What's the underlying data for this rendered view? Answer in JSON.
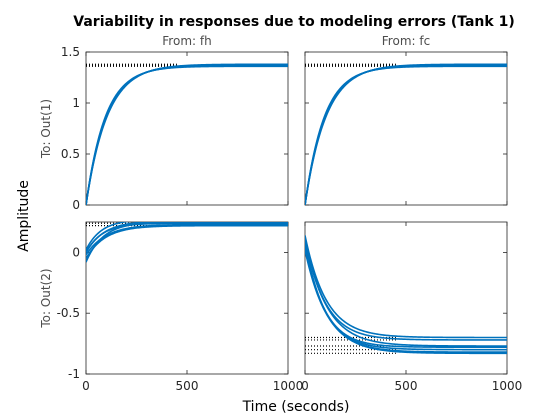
{
  "figure": {
    "title": "Variability in responses due to modeling errors (Tank 1)",
    "xlabel": "Time (seconds)",
    "ylabel": "Amplitude",
    "line_color": "#0072BD",
    "steady_state_marker_color": "#000000"
  },
  "chart_data": {
    "type": "line",
    "title": "Variability in responses due to modeling errors (Tank 1)",
    "xlabel": "Time (seconds)",
    "ylabel": "Amplitude",
    "grid": false,
    "inputs": [
      "From: fh",
      "From: fc"
    ],
    "outputs": [
      "To: Out(1)",
      "To: Out(2)"
    ],
    "rows": [
      {
        "ylim": [
          0,
          1.5
        ],
        "yticks": [
          0,
          0.5,
          1,
          1.5
        ],
        "ytick_labels": [
          "0",
          "0.5",
          "1",
          "1.5"
        ],
        "cells": [
          {
            "input": "From: fh",
            "output": "To: Out(1)",
            "series": [
              {
                "initial": 0,
                "final": 1.36,
                "tau": 95
              },
              {
                "initial": 0,
                "final": 1.37,
                "tau": 100
              },
              {
                "initial": 0,
                "final": 1.38,
                "tau": 105
              },
              {
                "initial": 0,
                "final": 1.365,
                "tau": 98
              },
              {
                "initial": 0,
                "final": 1.375,
                "tau": 102
              }
            ],
            "steady_state_levels": [
              1.36,
              1.37,
              1.38
            ]
          },
          {
            "input": "From: fc",
            "output": "To: Out(1)",
            "series": [
              {
                "initial": 0,
                "final": 1.36,
                "tau": 95
              },
              {
                "initial": 0,
                "final": 1.37,
                "tau": 100
              },
              {
                "initial": 0,
                "final": 1.38,
                "tau": 105
              },
              {
                "initial": 0,
                "final": 1.365,
                "tau": 98
              },
              {
                "initial": 0,
                "final": 1.375,
                "tau": 102
              }
            ],
            "steady_state_levels": [
              1.36,
              1.37,
              1.38
            ]
          }
        ]
      },
      {
        "ylim": [
          -1,
          0.25
        ],
        "yticks": [
          -1,
          -0.5,
          0
        ],
        "ytick_labels": [
          "-1",
          "-0.5",
          "0"
        ],
        "cells": [
          {
            "input": "From: fh",
            "output": "To: Out(2)",
            "series": [
              {
                "initial": 0,
                "final": 0.24,
                "tau": 80
              },
              {
                "initial": 0,
                "final": 0.26,
                "tau": 90
              },
              {
                "initial": -0.02,
                "final": 0.23,
                "tau": 100
              },
              {
                "initial": -0.05,
                "final": 0.22,
                "tau": 95
              },
              {
                "initial": -0.08,
                "final": 0.25,
                "tau": 85
              },
              {
                "initial": 0.02,
                "final": 0.27,
                "tau": 75
              }
            ],
            "steady_state_levels": [
              0.22,
              0.24,
              0.26,
              0.27
            ]
          },
          {
            "input": "From: fc",
            "output": "To: Out(2)",
            "series": [
              {
                "initial": 0.14,
                "final": -0.7,
                "tau": 105
              },
              {
                "initial": 0.12,
                "final": -0.72,
                "tau": 100
              },
              {
                "initial": 0.1,
                "final": -0.77,
                "tau": 110
              },
              {
                "initial": 0.08,
                "final": -0.78,
                "tau": 95
              },
              {
                "initial": 0.07,
                "final": -0.8,
                "tau": 100
              },
              {
                "initial": 0.05,
                "final": -0.82,
                "tau": 105
              },
              {
                "initial": 0.02,
                "final": -0.83,
                "tau": 110
              }
            ],
            "steady_state_levels": [
              -0.7,
              -0.72,
              -0.77,
              -0.8,
              -0.83
            ]
          }
        ]
      }
    ],
    "xlim": [
      0,
      1000
    ],
    "xticks": [
      0,
      500,
      1000
    ],
    "xtick_labels": [
      "0",
      "500",
      "1000"
    ]
  }
}
